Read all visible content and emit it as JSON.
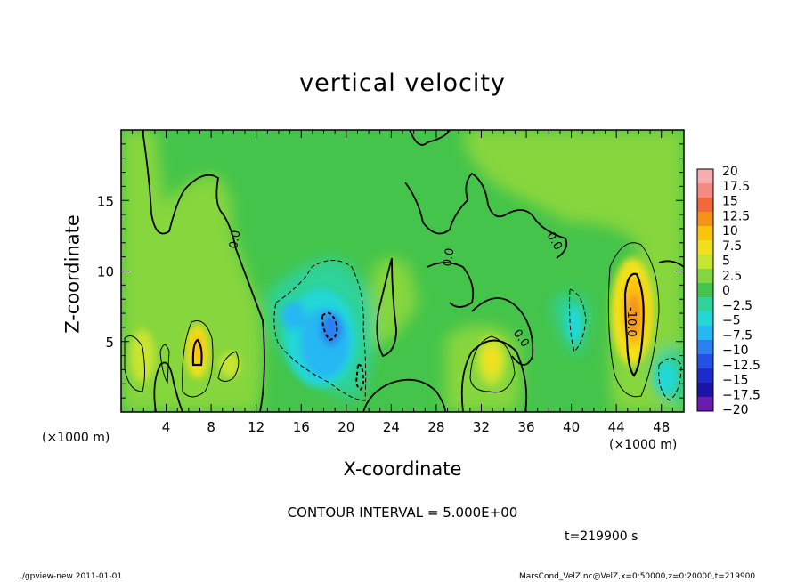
{
  "chart_data": {
    "type": "heatmap",
    "title": "vertical velocity",
    "xlabel": "X-coordinate",
    "ylabel": "Z-coordinate",
    "x_unit_label": "(×1000 m)",
    "x_unit_label_right": "(×1000 m)",
    "xlim": [
      0,
      50
    ],
    "ylim": [
      0,
      20
    ],
    "x_ticks": [
      4,
      8,
      12,
      16,
      20,
      24,
      28,
      32,
      36,
      40,
      44,
      48
    ],
    "y_ticks": [
      5,
      10,
      15
    ],
    "colorbar_labels": [
      "20",
      "17.5",
      "15",
      "12.5",
      "10",
      "7.5",
      "5",
      "2.5",
      "0",
      "−2.5",
      "−5",
      "−7.5",
      "−10",
      "−12.5",
      "−15",
      "−17.5",
      "−20"
    ],
    "colorbar_colors": [
      "#f7aeb0",
      "#f58a82",
      "#f26a3c",
      "#f6921a",
      "#fbc30c",
      "#f2e11a",
      "#c7e430",
      "#86d63e",
      "#44c44a",
      "#2ed29a",
      "#22d8d6",
      "#26b8f2",
      "#2a80ef",
      "#2350e6",
      "#1d2bcc",
      "#1a15a6",
      "#6a1cb0"
    ],
    "contour_labels": [
      "0.0",
      "0.0",
      "0.0",
      "0.0",
      "-10.0"
    ],
    "contour_interval_text": "CONTOUR INTERVAL = 5.000E+00",
    "time_text": "t=219900 s",
    "grid": false,
    "legend": "colorbar-right",
    "features": [
      {
        "kind": "updraft",
        "x": 46,
        "z": 7.5,
        "value": 11
      },
      {
        "kind": "updraft",
        "x": 6.5,
        "z": 4,
        "value": 9
      },
      {
        "kind": "updraft",
        "x": 33,
        "z": 4,
        "value": 7
      },
      {
        "kind": "downdraft",
        "x": 18.5,
        "z": 5.5,
        "value": -8
      },
      {
        "kind": "downdraft",
        "x": 49,
        "z": 2.5,
        "value": -5
      }
    ]
  },
  "footer": {
    "left": "./gpview-new   2011-01-01",
    "right": "MarsCond_VelZ.nc@VelZ,x=0:50000,z=0:20000,t=219900"
  }
}
